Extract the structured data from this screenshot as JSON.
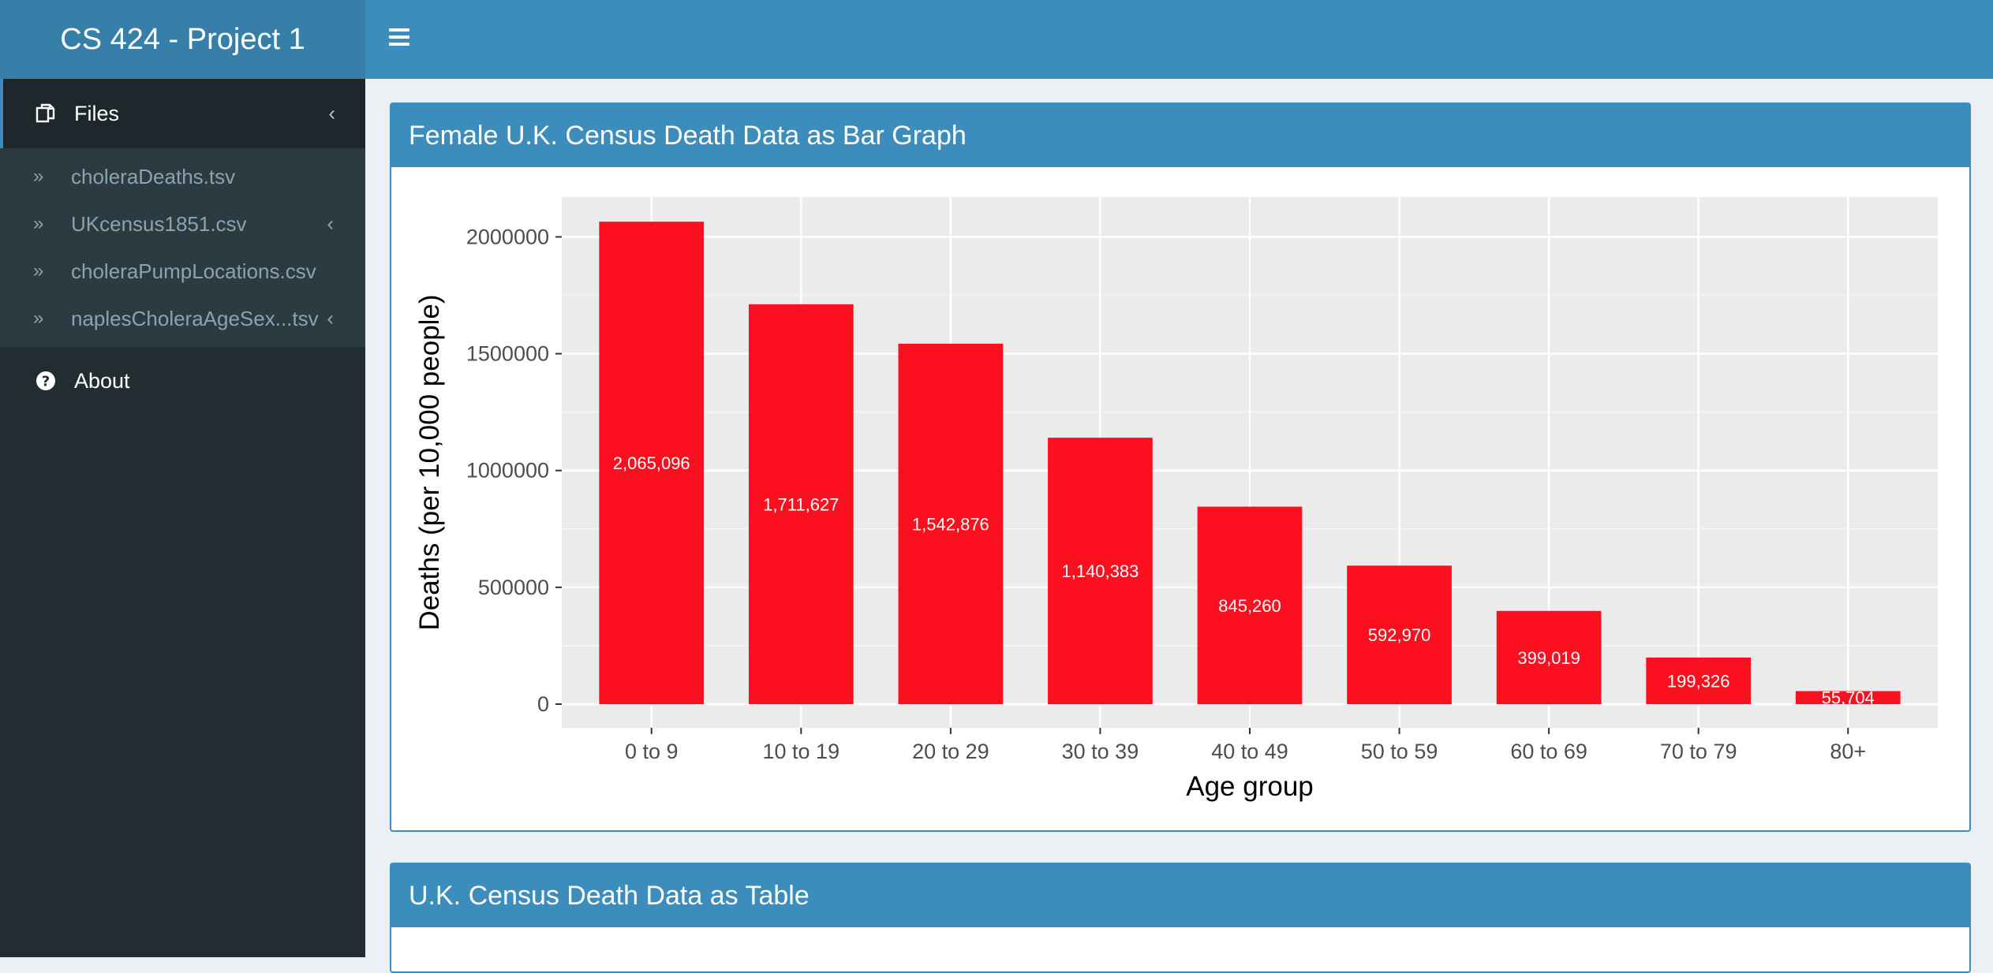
{
  "app": {
    "title": "CS 424 - Project 1"
  },
  "sidebar": {
    "files_label": "Files",
    "files": [
      {
        "label": "choleraDeaths.tsv",
        "has_children": false
      },
      {
        "label": "UKcensus1851.csv",
        "has_children": true
      },
      {
        "label": "choleraPumpLocations.csv",
        "has_children": false
      },
      {
        "label": "naplesCholeraAgeSex...tsv",
        "has_children": true
      }
    ],
    "about_label": "About"
  },
  "boxes": {
    "chart_title": "Female U.K. Census Death Data as Bar Graph",
    "table_title": "U.K. Census Death Data as Table"
  },
  "chart_data": {
    "type": "bar",
    "categories": [
      "0 to 9",
      "10 to 19",
      "20 to 29",
      "30 to 39",
      "40 to 49",
      "50 to 59",
      "60 to 69",
      "70 to 79",
      "80+"
    ],
    "values": [
      2065096,
      1711627,
      1542876,
      1140383,
      845260,
      592970,
      399019,
      199326,
      55704
    ],
    "data_labels": [
      "2,065,096",
      "1,711,627",
      "1,542,876",
      "1,140,383",
      "845,260",
      "592,970",
      "399,019",
      "199,326",
      "55,704"
    ],
    "xlabel": "Age group",
    "ylabel": "Deaths (per 10,000 people)",
    "ylim": [
      0,
      2150000
    ],
    "yticks": [
      0,
      500000,
      1000000,
      1500000,
      2000000
    ],
    "ytick_labels": [
      "0",
      "500000",
      "1000000",
      "1500000",
      "2000000"
    ],
    "bar_color": "#fc0f1e",
    "panel_color": "#ebebeb",
    "grid": true
  }
}
